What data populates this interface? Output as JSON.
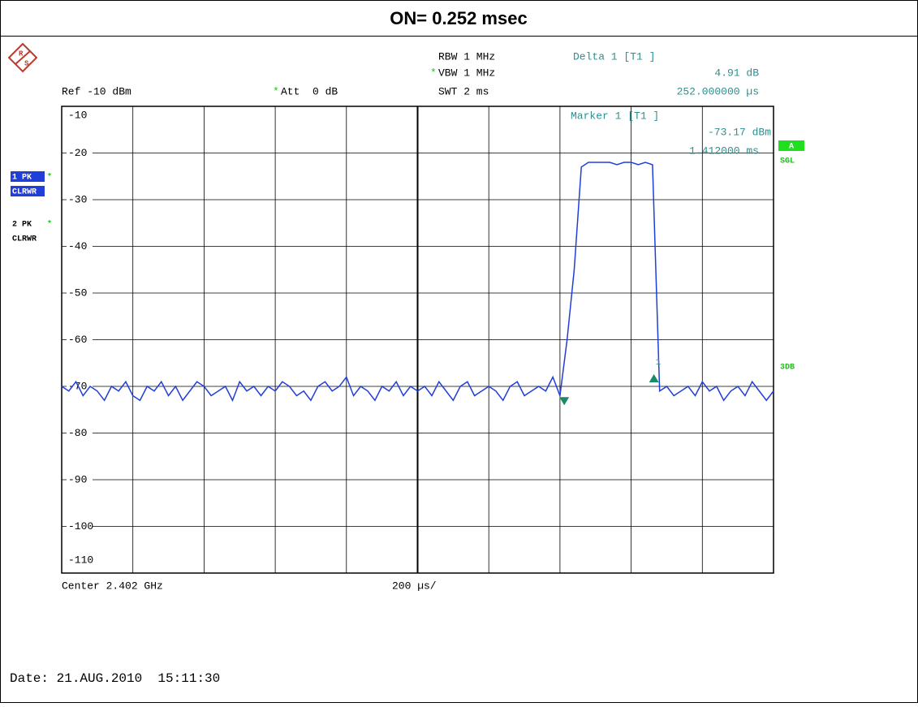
{
  "chart_data": {
    "type": "line",
    "title": "ON= 0.252 msec",
    "logo": {
      "r": "R",
      "s": "S"
    },
    "settings": {
      "ref": "Ref -10 dBm",
      "att_flag": "*",
      "att": "Att  0 dB",
      "rbw": "RBW 1 MHz",
      "vbw_flag": "*",
      "vbw": "VBW 1 MHz",
      "swt": "SWT 2 ms"
    },
    "delta_panel": {
      "label": "Delta 1 [T1 ]",
      "level": "4.91 dB",
      "time": "252.000000 µs"
    },
    "marker_panel": {
      "label": "Marker 1 [T1 ]",
      "level": "-73.17 dBm",
      "time": "1.412000 ms"
    },
    "traces": [
      {
        "id": "1 PK",
        "flag": "*",
        "mode": "CLRWR"
      },
      {
        "id": "2 PK",
        "flag": "*",
        "mode": "CLRWR"
      }
    ],
    "right_labels": {
      "a": "A",
      "sgl": "SGL",
      "db3": "3DB"
    },
    "marker_number": "1",
    "center": "Center 2.402 GHz",
    "span": "200 µs/",
    "date": "Date: 21.AUG.2010  15:11:30",
    "xlim": [
      0,
      2000
    ],
    "xticks": [
      0,
      200,
      400,
      600,
      800,
      1000,
      1200,
      1400,
      1600,
      1800,
      2000
    ],
    "ylim": [
      -110,
      -10
    ],
    "yticks": [
      -10,
      -20,
      -30,
      -40,
      -50,
      -60,
      -70,
      -80,
      -90,
      -100,
      -110
    ],
    "grid": true,
    "marker1": {
      "x": 1412,
      "y": -73.17
    },
    "delta1": {
      "x": 1664,
      "y": -68.26
    },
    "series": [
      {
        "name": "1 PK",
        "color": "#1f3fd8",
        "x": [
          0,
          20,
          40,
          60,
          80,
          100,
          120,
          140,
          160,
          180,
          200,
          220,
          240,
          260,
          280,
          300,
          320,
          340,
          360,
          380,
          400,
          420,
          440,
          460,
          480,
          500,
          520,
          540,
          560,
          580,
          600,
          620,
          640,
          660,
          680,
          700,
          720,
          740,
          760,
          780,
          800,
          820,
          840,
          860,
          880,
          900,
          920,
          940,
          960,
          980,
          1000,
          1020,
          1040,
          1060,
          1080,
          1100,
          1120,
          1140,
          1160,
          1180,
          1200,
          1220,
          1240,
          1260,
          1280,
          1300,
          1320,
          1340,
          1360,
          1380,
          1400,
          1420,
          1440,
          1460,
          1480,
          1500,
          1520,
          1540,
          1560,
          1580,
          1600,
          1620,
          1640,
          1660,
          1680,
          1700,
          1720,
          1740,
          1760,
          1780,
          1800,
          1820,
          1840,
          1860,
          1880,
          1900,
          1920,
          1940,
          1960,
          1980,
          2000
        ],
        "values": [
          -70,
          -71,
          -69,
          -72,
          -70,
          -71,
          -73,
          -70,
          -71,
          -69,
          -72,
          -73,
          -70,
          -71,
          -69,
          -72,
          -70,
          -73,
          -71,
          -69,
          -70,
          -72,
          -71,
          -70,
          -73,
          -69,
          -71,
          -70,
          -72,
          -70,
          -71,
          -69,
          -70,
          -72,
          -71,
          -73,
          -70,
          -69,
          -71,
          -70,
          -68,
          -72,
          -70,
          -71,
          -73,
          -70,
          -71,
          -69,
          -72,
          -70,
          -71,
          -70,
          -72,
          -69,
          -71,
          -73,
          -70,
          -69,
          -72,
          -71,
          -70,
          -71,
          -73,
          -70,
          -69,
          -72,
          -71,
          -70,
          -71,
          -68,
          -72,
          -60,
          -45,
          -23,
          -22,
          -22,
          -22,
          -22,
          -22.5,
          -22,
          -22,
          -22.5,
          -22,
          -22.5,
          -71,
          -70,
          -72,
          -71,
          -70,
          -72,
          -69,
          -71,
          -70,
          -73,
          -71,
          -70,
          -72,
          -69,
          -71,
          -73,
          -71
        ]
      }
    ]
  }
}
